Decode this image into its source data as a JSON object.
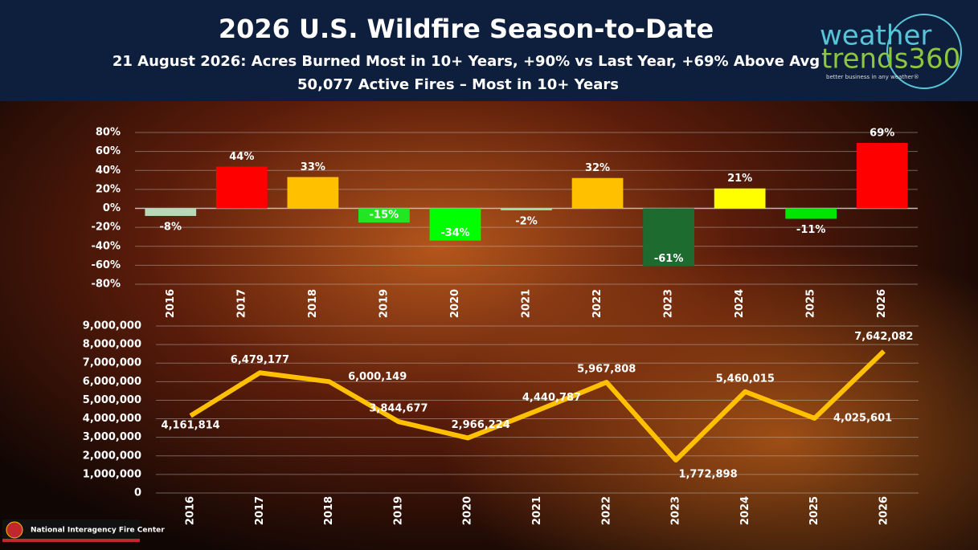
{
  "header": {
    "title": "2026 U.S. Wildfire Season-to-Date",
    "subtitle": "21 August 2026:  Acres Burned Most in 10+ Years, +90% vs Last Year, +69% Above Avg",
    "subtitle2": "50,077 Active Fires – Most in 10+ Years"
  },
  "logo": {
    "line1": "weather",
    "line2": "trends360",
    "tagline": "better business in any weather®"
  },
  "footer": "National Interagency Fire Center",
  "chart_data": [
    {
      "type": "bar",
      "categories": [
        "2016",
        "2017",
        "2018",
        "2019",
        "2020",
        "2021",
        "2022",
        "2023",
        "2024",
        "2025",
        "2026"
      ],
      "values": [
        -8,
        44,
        33,
        -15,
        -34,
        -2,
        32,
        -61,
        21,
        -11,
        69
      ],
      "value_labels": [
        "-8%",
        "44%",
        "33%",
        "-15%",
        "-34%",
        "-2%",
        "32%",
        "-61%",
        "21%",
        "-11%",
        "69%"
      ],
      "colors": [
        "#b8d8b8",
        "#ff0000",
        "#ffc000",
        "#22e622",
        "#00ff00",
        "#9be89b",
        "#ffc000",
        "#1e6b30",
        "#ffff00",
        "#00e600",
        "#ff0000"
      ],
      "ylim": [
        -80,
        80
      ],
      "yticks": [
        {
          "value": -80,
          "label": "-80%"
        },
        {
          "value": -60,
          "label": "-60%"
        },
        {
          "value": -40,
          "label": "-40%"
        },
        {
          "value": -20,
          "label": "-20%"
        },
        {
          "value": 0,
          "label": "0%"
        },
        {
          "value": 20,
          "label": "20%"
        },
        {
          "value": 40,
          "label": "40%"
        },
        {
          "value": 60,
          "label": "60%"
        },
        {
          "value": 80,
          "label": "80%"
        }
      ],
      "grid": true
    },
    {
      "type": "line",
      "categories": [
        "2016",
        "2017",
        "2018",
        "2019",
        "2020",
        "2021",
        "2022",
        "2023",
        "2024",
        "2025",
        "2026"
      ],
      "values": [
        4161814,
        6479177,
        6000149,
        3844677,
        2966224,
        4440787,
        5967808,
        1772898,
        5460015,
        4025601,
        7642082
      ],
      "value_labels": [
        "4,161,814",
        "6,479,177",
        "6,000,149",
        "3,844,677",
        "2,966,224",
        "4,440,787",
        "5,967,808",
        "1,772,898",
        "5,460,015",
        "4,025,601",
        "7,642,082"
      ],
      "color": "#ffc000",
      "ylim": [
        0,
        9000000
      ],
      "yticks": [
        0,
        {
          "value": 1000000,
          "label": "1,000,000"
        },
        {
          "value": 2000000,
          "label": "2,000,000"
        },
        {
          "value": 3000000,
          "label": "3,000,000"
        },
        {
          "value": 4000000,
          "label": "4,000,000"
        },
        {
          "value": 5000000,
          "label": "5,000,000"
        },
        {
          "value": 6000000,
          "label": "6,000,000"
        },
        {
          "value": 7000000,
          "label": "7,000,000"
        },
        {
          "value": 8000000,
          "label": "8,000,000"
        },
        {
          "value": 9000000,
          "label": "9,000,000"
        }
      ],
      "grid": true
    }
  ]
}
